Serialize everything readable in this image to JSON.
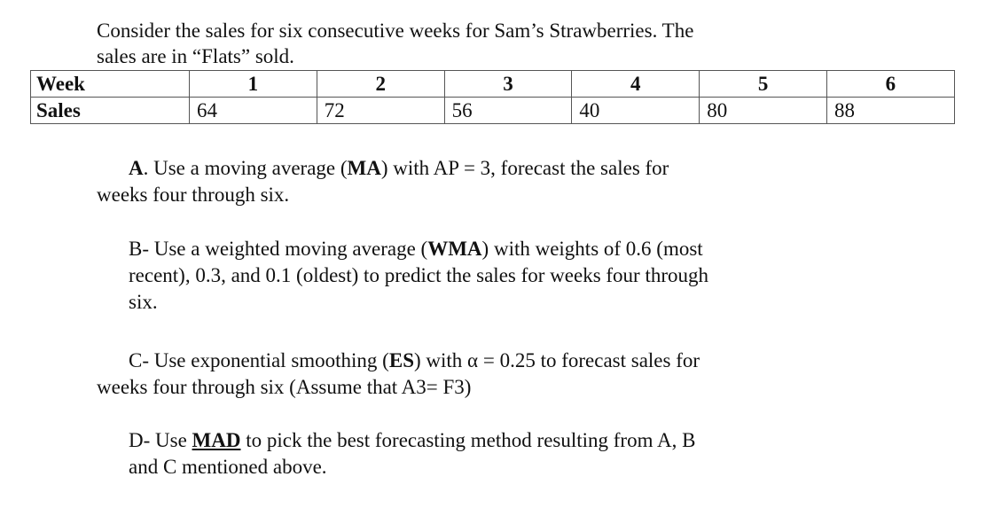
{
  "intro": {
    "line1": "Consider the sales for six consecutive weeks for Sam’s Strawberries.  The",
    "line2": "sales are in “Flats” sold."
  },
  "table": {
    "row_labels": [
      "Week",
      "Sales"
    ],
    "weeks": [
      "1",
      "2",
      "3",
      "4",
      "5",
      "6"
    ],
    "sales": [
      "64",
      "72",
      "56",
      "40",
      "80",
      "88"
    ]
  },
  "questions": {
    "a": {
      "letter": "A",
      "pre": ". Use a moving average (",
      "abbr": "MA",
      "post": ") with AP = 3, forecast the sales for",
      "line2": "weeks four through six."
    },
    "b": {
      "prefix": "B- Use a weighted moving average (",
      "abbr": "WMA",
      "post": ") with weights of 0.6 (most",
      "line2": "recent), 0.3, and 0.1 (oldest) to predict the sales for weeks four through",
      "line3": "six."
    },
    "c": {
      "prefix": "C- Use exponential smoothing (",
      "abbr": "ES",
      "post": ") with α = 0.25 to forecast sales for",
      "line2": "weeks four through six (Assume that A3= F3)"
    },
    "d": {
      "prefix": "D- Use ",
      "abbr": "MAD",
      "post": " to pick the best forecasting method resulting from A, B",
      "line2": "and C mentioned above."
    }
  }
}
